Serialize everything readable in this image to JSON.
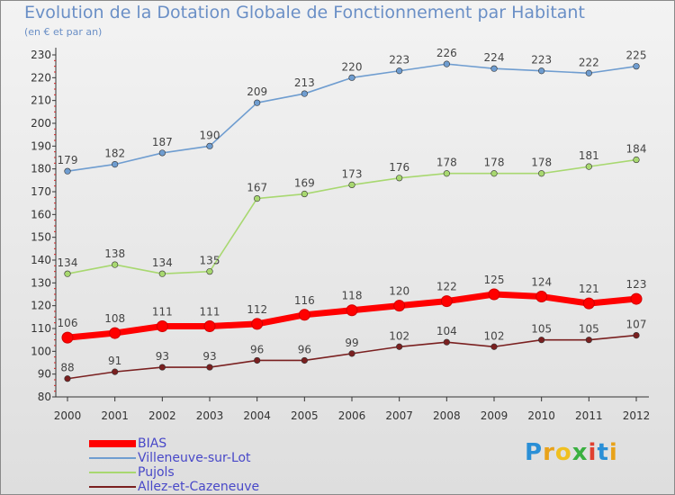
{
  "title": "Evolution de la Dotation Globale de Fonctionnement par Habitant",
  "subtitle": "(en € et par an)",
  "logo": {
    "text": "Proxiti",
    "letters": [
      "P",
      "r",
      "o",
      "x",
      "i",
      "t",
      "i"
    ],
    "colors": [
      "#2a8fd6",
      "#e8a21a",
      "#f0c020",
      "#3ab040",
      "#e04030",
      "#2a8fd6",
      "#e8a21a"
    ]
  },
  "chart_data": {
    "type": "line",
    "title": "Evolution de la Dotation Globale de Fonctionnement par Habitant",
    "subtitle": "(en € et par an)",
    "x": [
      "2000",
      "2001",
      "2002",
      "2003",
      "2004",
      "2005",
      "2006",
      "2007",
      "2008",
      "2009",
      "2010",
      "2011",
      "2012"
    ],
    "ylim": [
      80,
      230
    ],
    "yticks": [
      80,
      90,
      100,
      110,
      120,
      130,
      140,
      150,
      160,
      170,
      180,
      190,
      200,
      210,
      220,
      230
    ],
    "grid": false,
    "legend_position": "bottom-left",
    "series": [
      {
        "name": "BIAS",
        "color": "#ff0000",
        "values": [
          106,
          108,
          111,
          111,
          112,
          116,
          118,
          120,
          122,
          125,
          124,
          121,
          123
        ]
      },
      {
        "name": "Villeneuve-sur-Lot",
        "color": "#6f9dd0",
        "values": [
          179,
          182,
          187,
          190,
          209,
          213,
          220,
          223,
          226,
          224,
          223,
          222,
          225
        ]
      },
      {
        "name": "Pujols",
        "color": "#a8d870",
        "values": [
          134,
          138,
          134,
          135,
          167,
          169,
          173,
          176,
          178,
          178,
          178,
          181,
          184
        ]
      },
      {
        "name": "Allez-et-Cazeneuve",
        "color": "#7a2020",
        "values": [
          88,
          91,
          93,
          93,
          96,
          96,
          99,
          102,
          104,
          102,
          105,
          105,
          107
        ]
      }
    ]
  }
}
